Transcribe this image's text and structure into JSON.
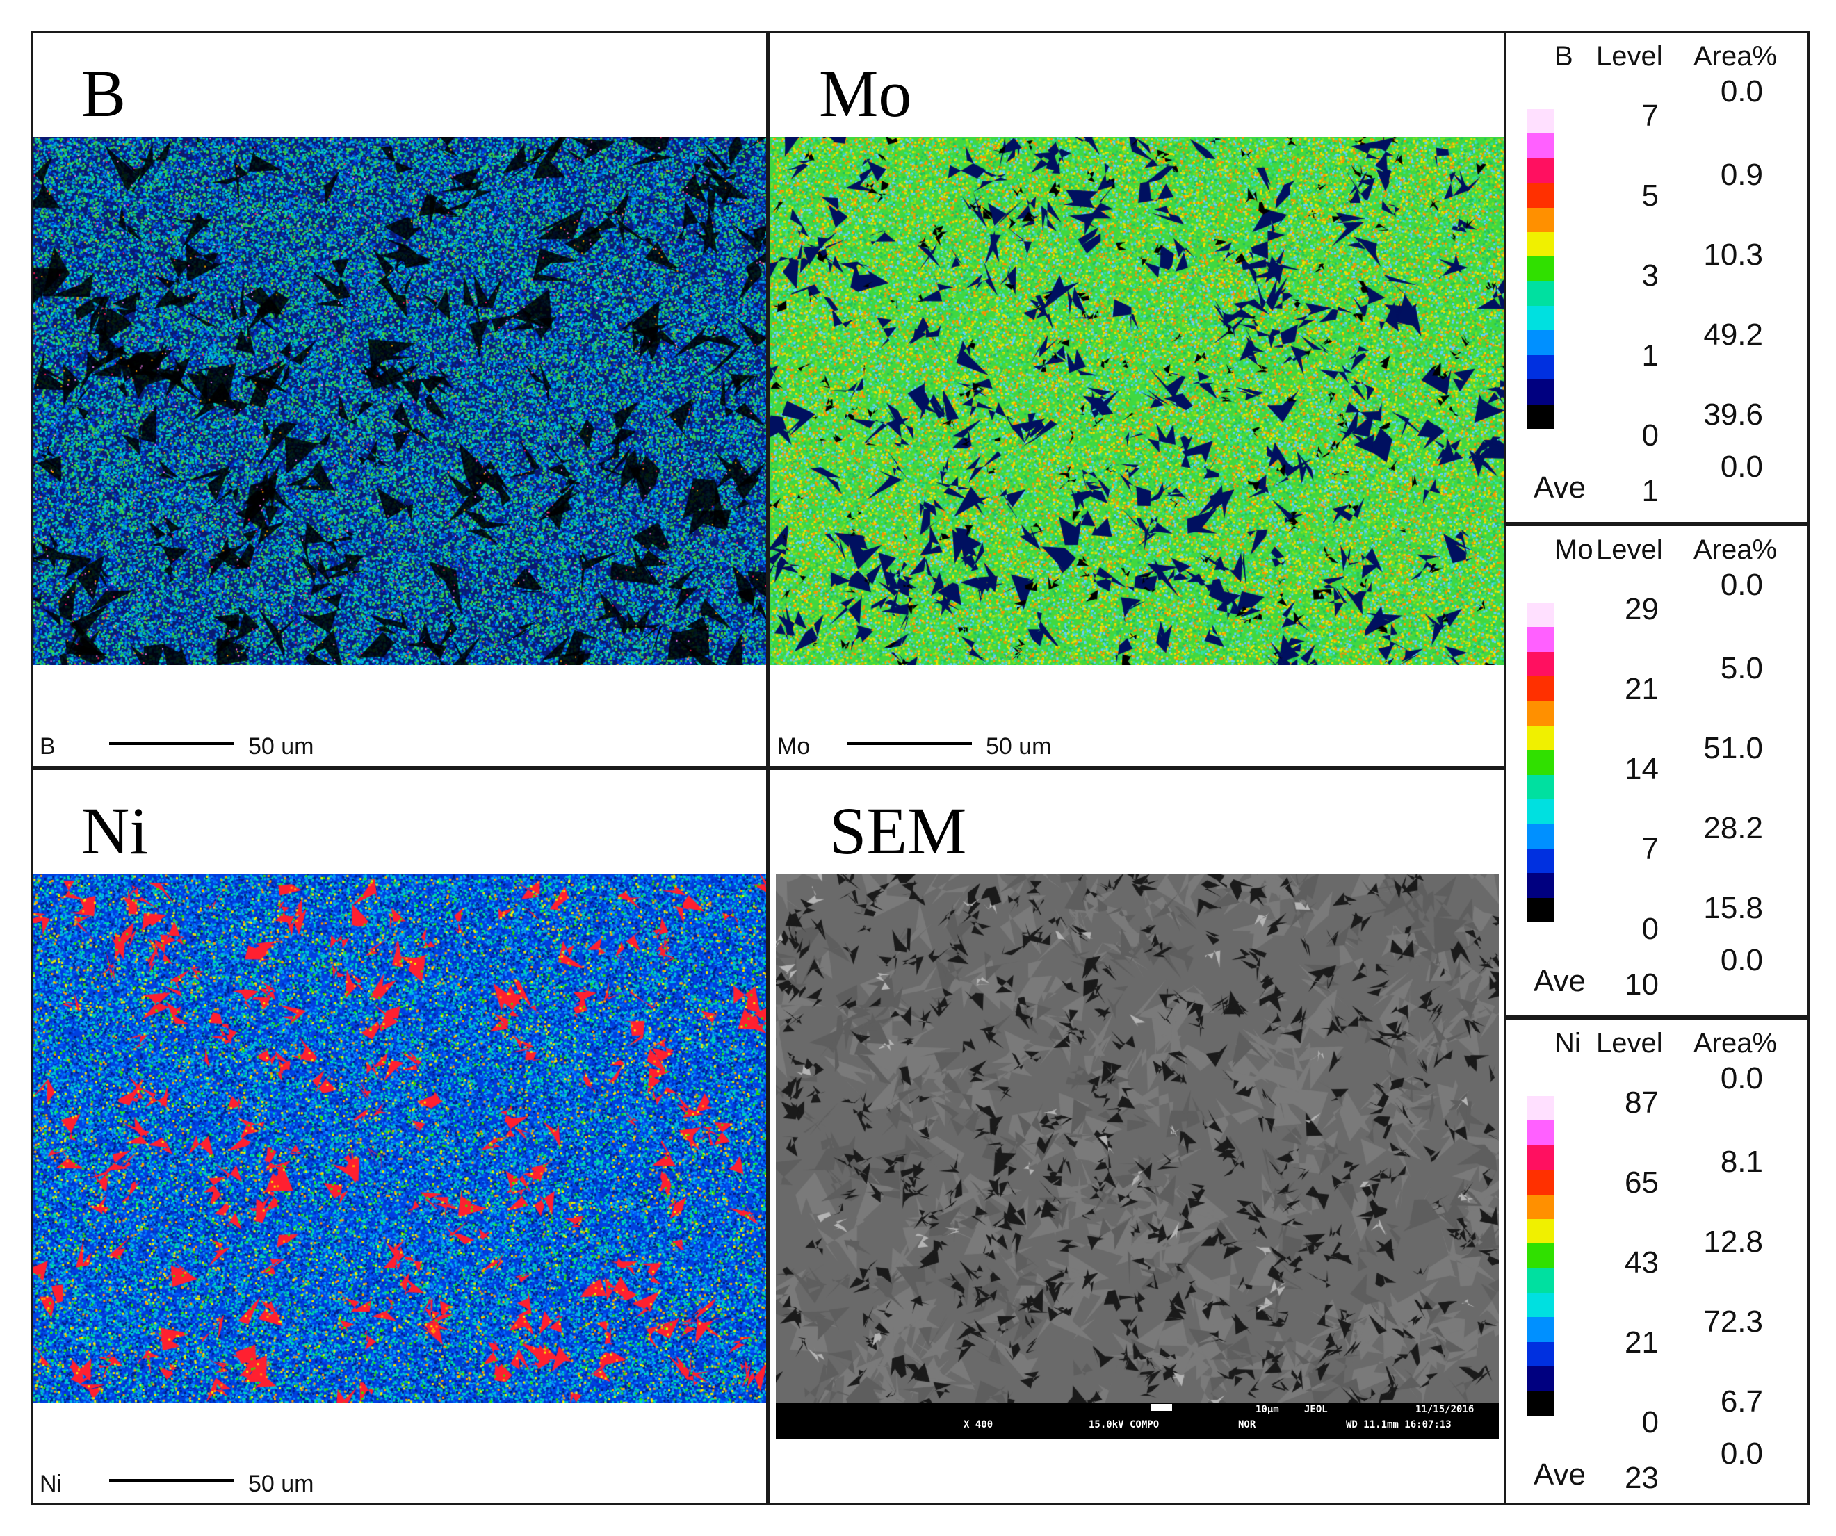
{
  "panels": [
    {
      "id": "B",
      "title": "B",
      "footer_element": "B",
      "scale_label": "50 um",
      "map": "b"
    },
    {
      "id": "Mo",
      "title": "Mo",
      "footer_element": "Mo",
      "scale_label": "50 um",
      "map": "mo"
    },
    {
      "id": "Ni",
      "title": "Ni",
      "footer_element": "Ni",
      "scale_label": "50 um",
      "map": "ni"
    },
    {
      "id": "SEM",
      "title": "SEM",
      "map": "sem"
    }
  ],
  "sem_info": {
    "scale": "10μm",
    "vendor": "JEOL",
    "date": "11/15/2016",
    "mag": "X 400",
    "kv": "15.0kV COMPO",
    "mode": "NOR",
    "wd": "WD 11.1mm 16:07:13"
  },
  "legends": [
    {
      "element": "B",
      "level_header": "Level",
      "area_header": "Area%",
      "levels": [
        "7",
        "5",
        "3",
        "1",
        "0"
      ],
      "area_values": [
        "0.0",
        "0.9",
        "10.3",
        "49.2",
        "39.6",
        "0.0"
      ],
      "ave_label": "Ave",
      "ave_value": "1"
    },
    {
      "element": "Mo",
      "level_header": "Level",
      "area_header": "Area%",
      "levels": [
        "29",
        "21",
        "14",
        "7",
        "0"
      ],
      "area_values": [
        "0.0",
        "5.0",
        "51.0",
        "28.2",
        "15.8",
        "0.0"
      ],
      "ave_label": "Ave",
      "ave_value": "10"
    },
    {
      "element": "Ni",
      "level_header": "Level",
      "area_header": "Area%",
      "levels": [
        "87",
        "65",
        "43",
        "21",
        "0"
      ],
      "area_values": [
        "0.0",
        "8.1",
        "12.8",
        "72.3",
        "6.7",
        "0.0"
      ],
      "ave_label": "Ave",
      "ave_value": "23"
    }
  ],
  "colormap": [
    "#ffe0ff",
    "#ff60ff",
    "#ff1060",
    "#ff3000",
    "#ff9000",
    "#f0f000",
    "#30e000",
    "#00e0a0",
    "#00e0e0",
    "#0090ff",
    "#0030e0",
    "#000080",
    "#000000"
  ]
}
